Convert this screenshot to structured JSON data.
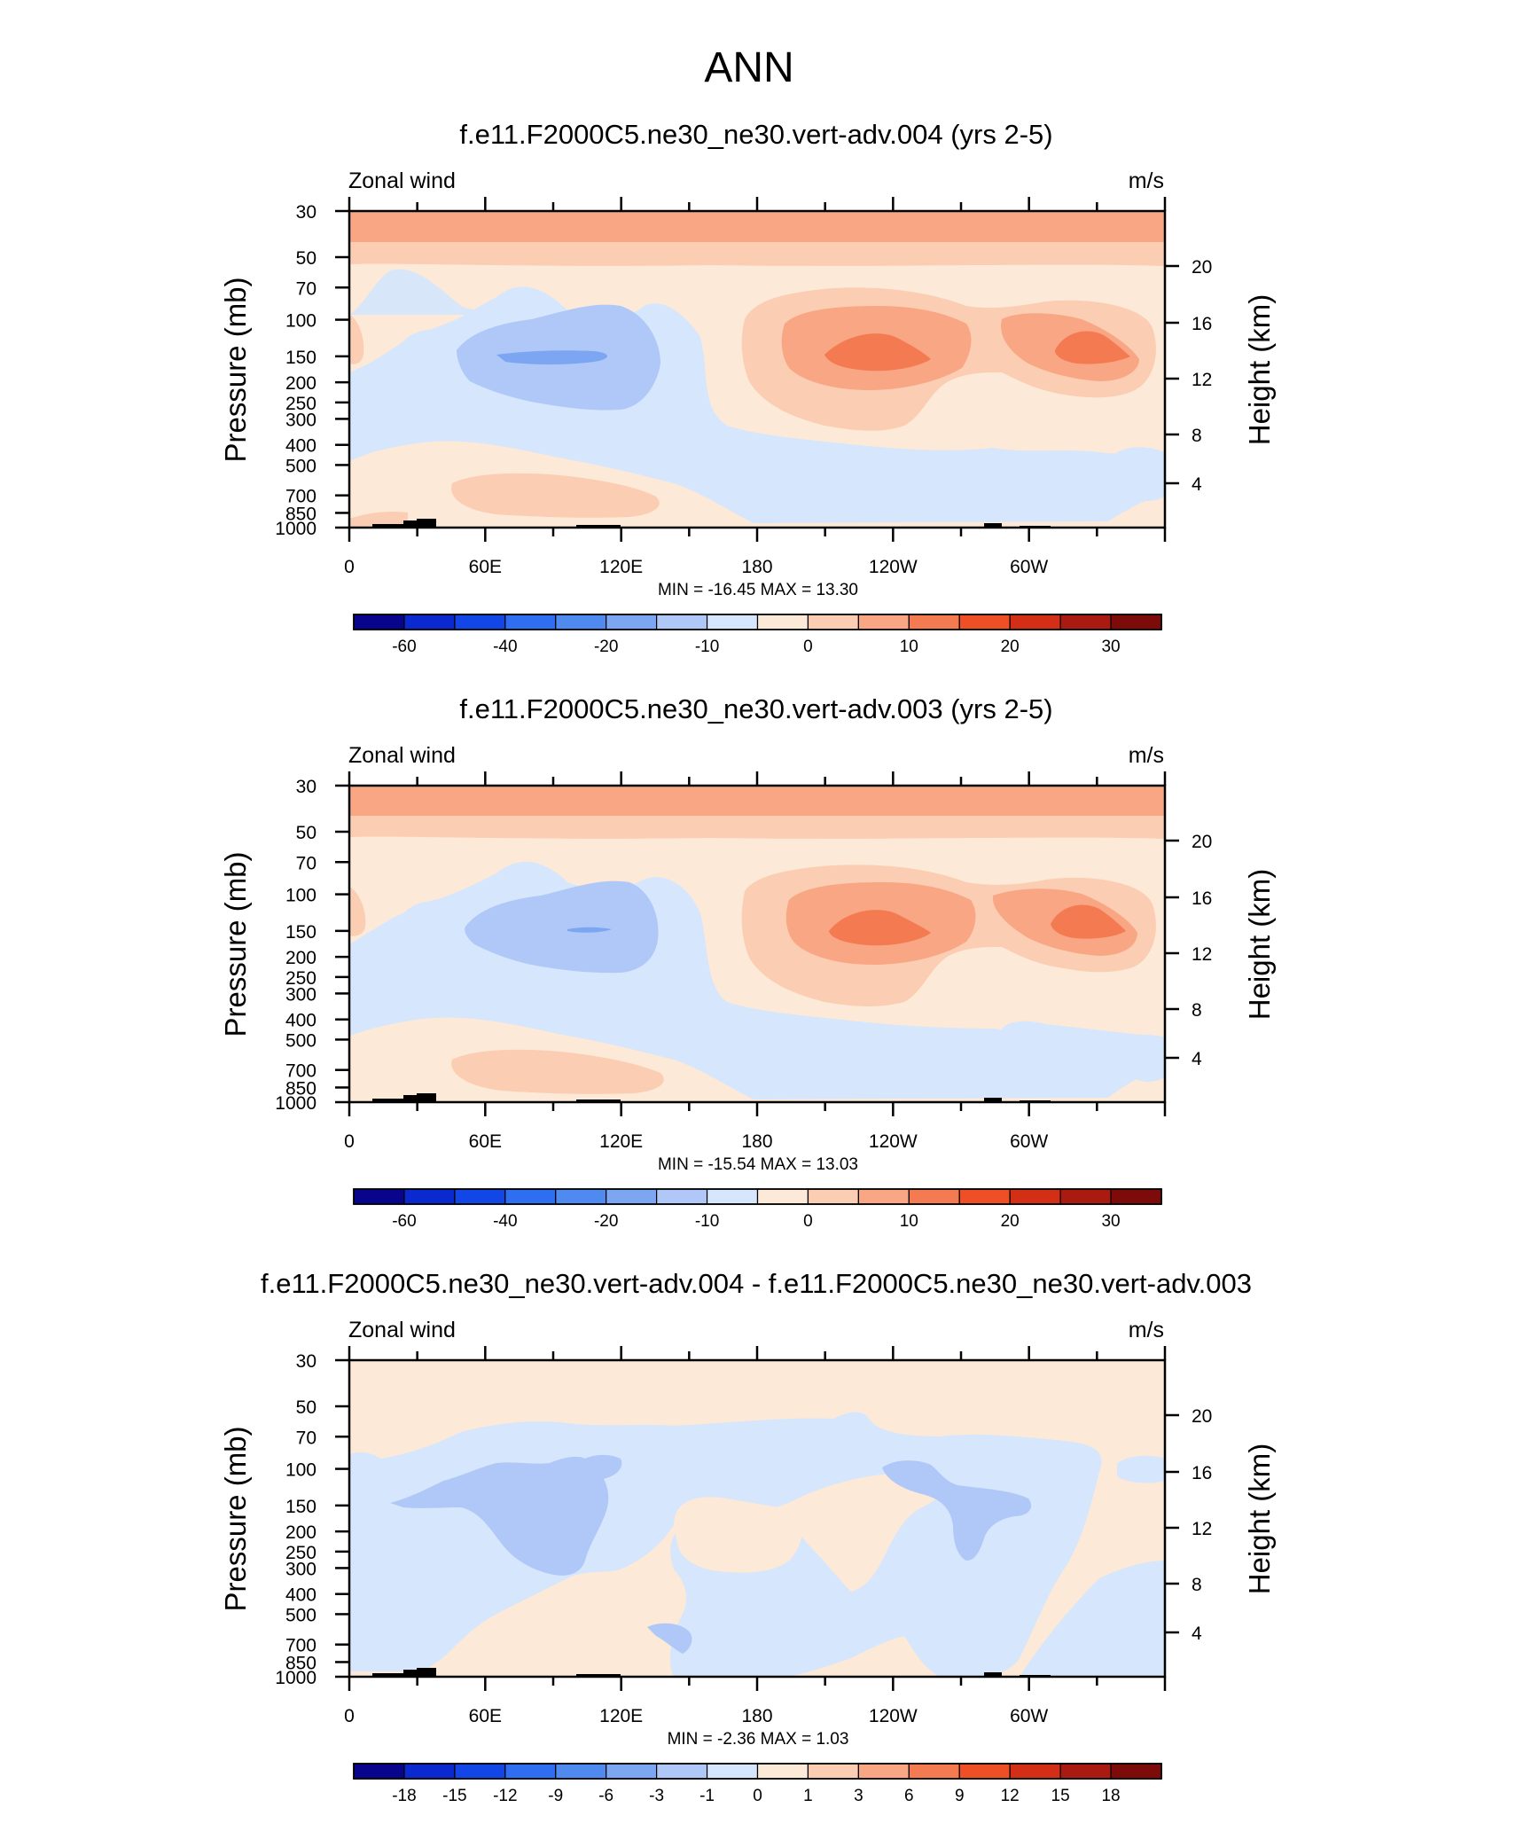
{
  "main_title": "ANN",
  "colors": {
    "ramp_main": [
      "#08058c",
      "#0a2ad0",
      "#1246e6",
      "#2e6ef0",
      "#4f8af0",
      "#7ca6f2",
      "#afc8f8",
      "#d6e6fc",
      "#fde9d7",
      "#fbcdb2",
      "#f9a685",
      "#f47a52",
      "#ee4f24",
      "#d32f17",
      "#a91b10",
      "#7c0b0a"
    ],
    "ramp_diff": [
      "#08058c",
      "#0a2ad0",
      "#1246e6",
      "#2e6ef0",
      "#4f8af0",
      "#7ca6f2",
      "#afc8f8",
      "#d6e6fc",
      "#fde9d7",
      "#fbcdb2",
      "#f9a685",
      "#f47a52",
      "#ee4f24",
      "#d32f17",
      "#a91b10",
      "#7c0b0a"
    ],
    "topography": "#000000"
  },
  "chart_data": [
    {
      "type": "contour",
      "title": "f.e11.F2000C5.ne30_ne30.vert-adv.004 (yrs 2-5)",
      "left_string": "Zonal wind",
      "right_string": "m/s",
      "ylabel": "Pressure (mb)",
      "ylabel_right": "Height (km)",
      "x_ticks": [
        "0",
        "60E",
        "120E",
        "180",
        "120W",
        "60W"
      ],
      "y_ticks": [
        "30",
        "50",
        "70",
        "100",
        "150",
        "200",
        "250",
        "300",
        "400",
        "500",
        "700",
        "850",
        "1000"
      ],
      "y_right_ticks": [
        "20",
        "16",
        "12",
        "8",
        "4"
      ],
      "stats": "MIN = -16.45  MAX =  13.30",
      "colorbar_labels": [
        "-60",
        "-40",
        "-20",
        "-10",
        "0",
        "10",
        "20",
        "30"
      ]
    },
    {
      "type": "contour",
      "title": "f.e11.F2000C5.ne30_ne30.vert-adv.003 (yrs 2-5)",
      "left_string": "Zonal wind",
      "right_string": "m/s",
      "ylabel": "Pressure (mb)",
      "ylabel_right": "Height (km)",
      "x_ticks": [
        "0",
        "60E",
        "120E",
        "180",
        "120W",
        "60W"
      ],
      "y_ticks": [
        "30",
        "50",
        "70",
        "100",
        "150",
        "200",
        "250",
        "300",
        "400",
        "500",
        "700",
        "850",
        "1000"
      ],
      "y_right_ticks": [
        "20",
        "16",
        "12",
        "8",
        "4"
      ],
      "stats": "MIN = -15.54  MAX =  13.03",
      "colorbar_labels": [
        "-60",
        "-40",
        "-20",
        "-10",
        "0",
        "10",
        "20",
        "30"
      ]
    },
    {
      "type": "contour",
      "title": "f.e11.F2000C5.ne30_ne30.vert-adv.004 - f.e11.F2000C5.ne30_ne30.vert-adv.003",
      "left_string": "Zonal wind",
      "right_string": "m/s",
      "ylabel": "Pressure (mb)",
      "ylabel_right": "Height (km)",
      "x_ticks": [
        "0",
        "60E",
        "120E",
        "180",
        "120W",
        "60W"
      ],
      "y_ticks": [
        "30",
        "50",
        "70",
        "100",
        "150",
        "200",
        "250",
        "300",
        "400",
        "500",
        "700",
        "850",
        "1000"
      ],
      "y_right_ticks": [
        "20",
        "16",
        "12",
        "8",
        "4"
      ],
      "stats": "MIN =  -2.36  MAX =   1.03",
      "colorbar_labels": [
        "-18",
        "-15",
        "-12",
        "-9",
        "-6",
        "-3",
        "-1",
        "0",
        "1",
        "3",
        "6",
        "9",
        "12",
        "15",
        "18"
      ]
    }
  ]
}
